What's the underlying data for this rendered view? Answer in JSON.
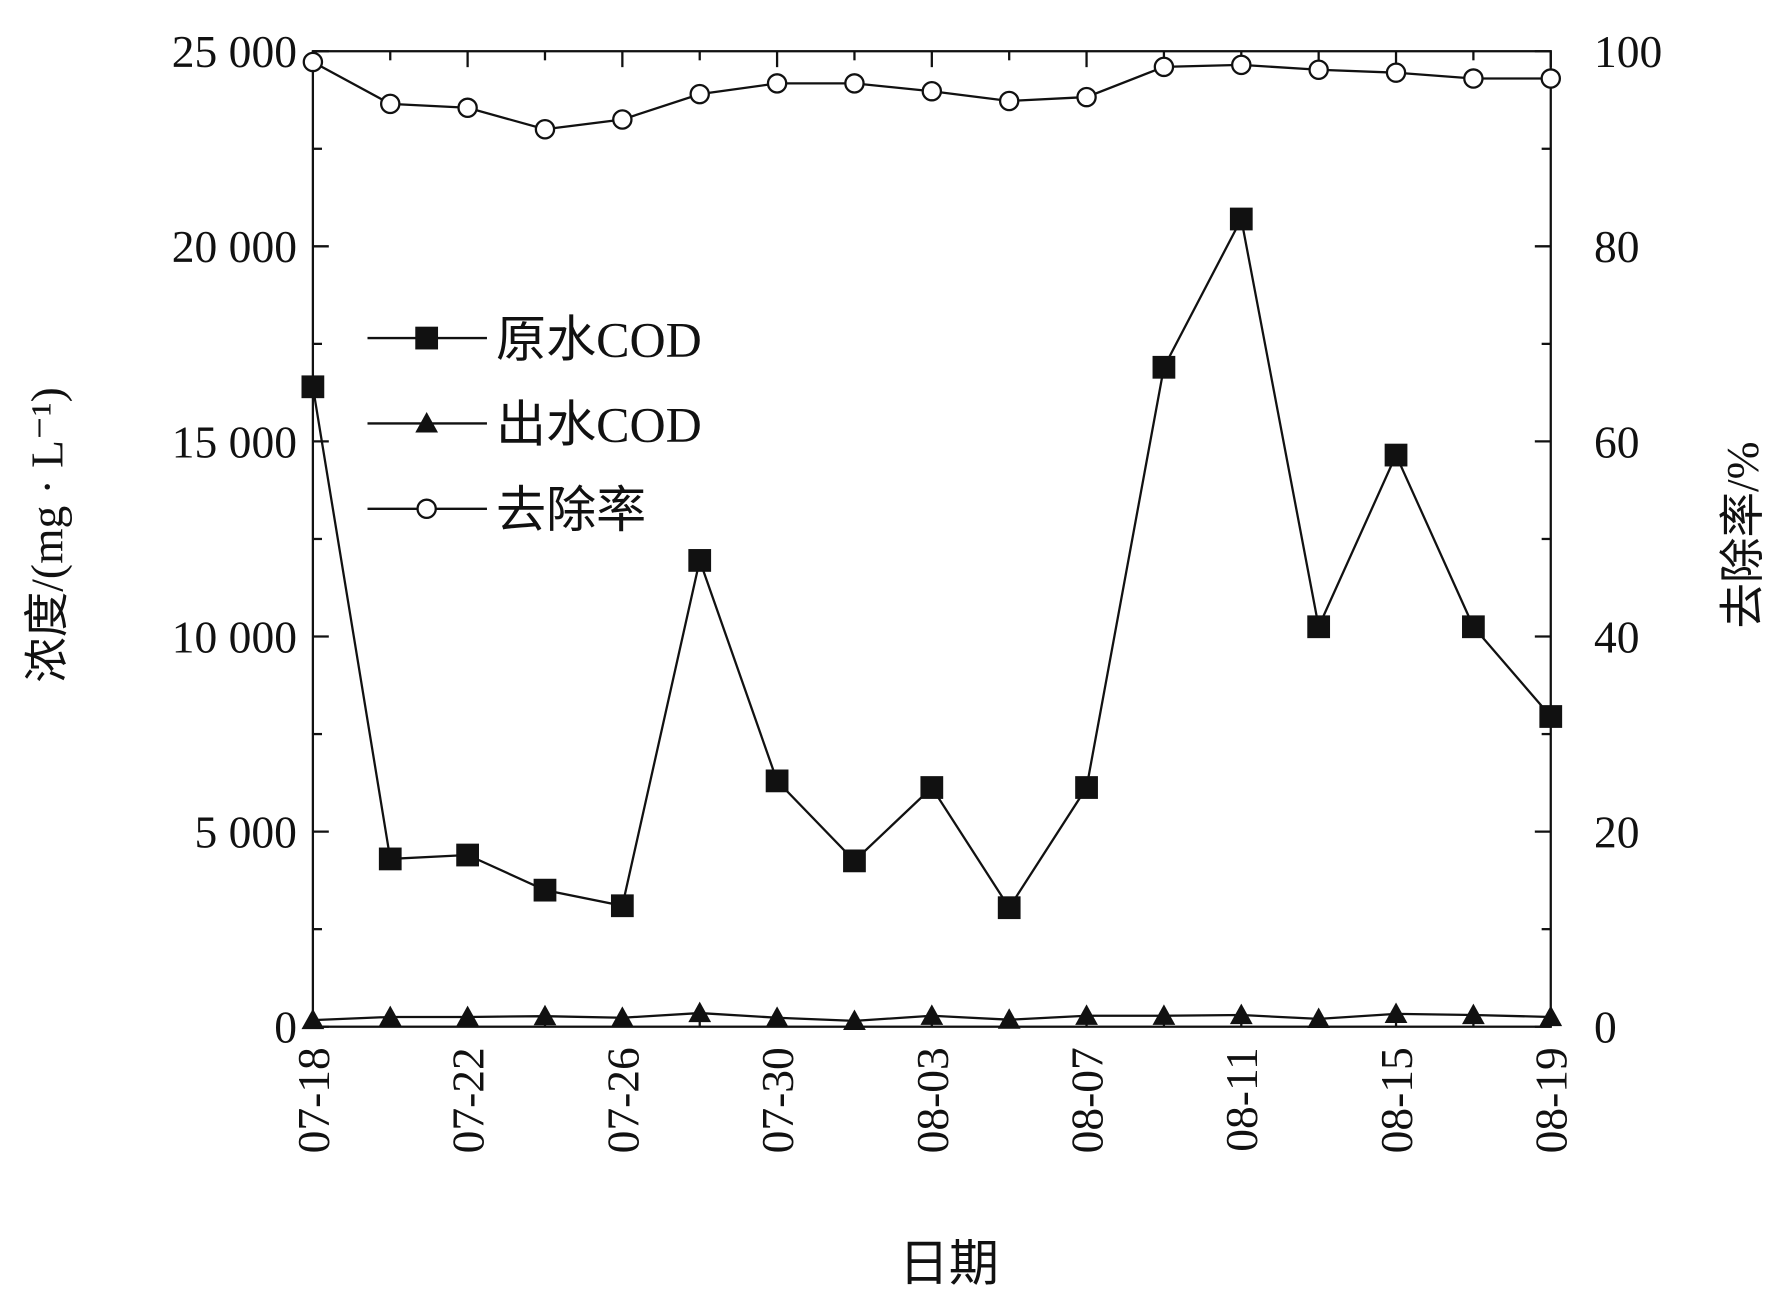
{
  "chart_data": {
    "type": "line",
    "xlabel": "日期",
    "ylabel_left": "浓度/(mg · L⁻¹)",
    "ylabel_right": "去除率/%",
    "categories": [
      "07-18",
      "07-20",
      "07-22",
      "07-24",
      "07-26",
      "07-28",
      "07-30",
      "08-01",
      "08-03",
      "08-05",
      "08-07",
      "08-09",
      "08-11",
      "08-13",
      "08-15",
      "08-17",
      "08-19"
    ],
    "x_tick_labels": [
      "07-18",
      "07-22",
      "07-26",
      "07-30",
      "08-03",
      "08-07",
      "08-11",
      "08-15",
      "08-19"
    ],
    "yleft_lim": [
      0,
      25000
    ],
    "yleft_ticks": [
      "0",
      "5 000",
      "10 000",
      "15 000",
      "20 000",
      "25 000"
    ],
    "yright_lim": [
      0,
      100
    ],
    "yright_ticks": [
      "0",
      "20",
      "40",
      "60",
      "80",
      "100"
    ],
    "grid": false,
    "legend_position": "upper-left",
    "series": [
      {
        "name": "原水COD",
        "axis": "left",
        "marker": "filled-square",
        "values": [
          16400,
          4300,
          4400,
          3500,
          3100,
          11950,
          6300,
          4250,
          6130,
          3050,
          6130,
          16900,
          20700,
          10250,
          14650,
          10250,
          7950
        ]
      },
      {
        "name": "出水COD",
        "axis": "left",
        "marker": "filled-triangle",
        "values": [
          170,
          250,
          250,
          270,
          230,
          350,
          230,
          150,
          280,
          180,
          280,
          280,
          300,
          200,
          330,
          300,
          250
        ]
      },
      {
        "name": "去除率",
        "axis": "right",
        "marker": "open-circle",
        "values": [
          98.9,
          94.6,
          94.2,
          92.0,
          93.0,
          95.6,
          96.7,
          96.7,
          95.9,
          94.9,
          95.3,
          98.4,
          98.6,
          98.1,
          97.8,
          97.2,
          97.2
        ]
      }
    ]
  }
}
